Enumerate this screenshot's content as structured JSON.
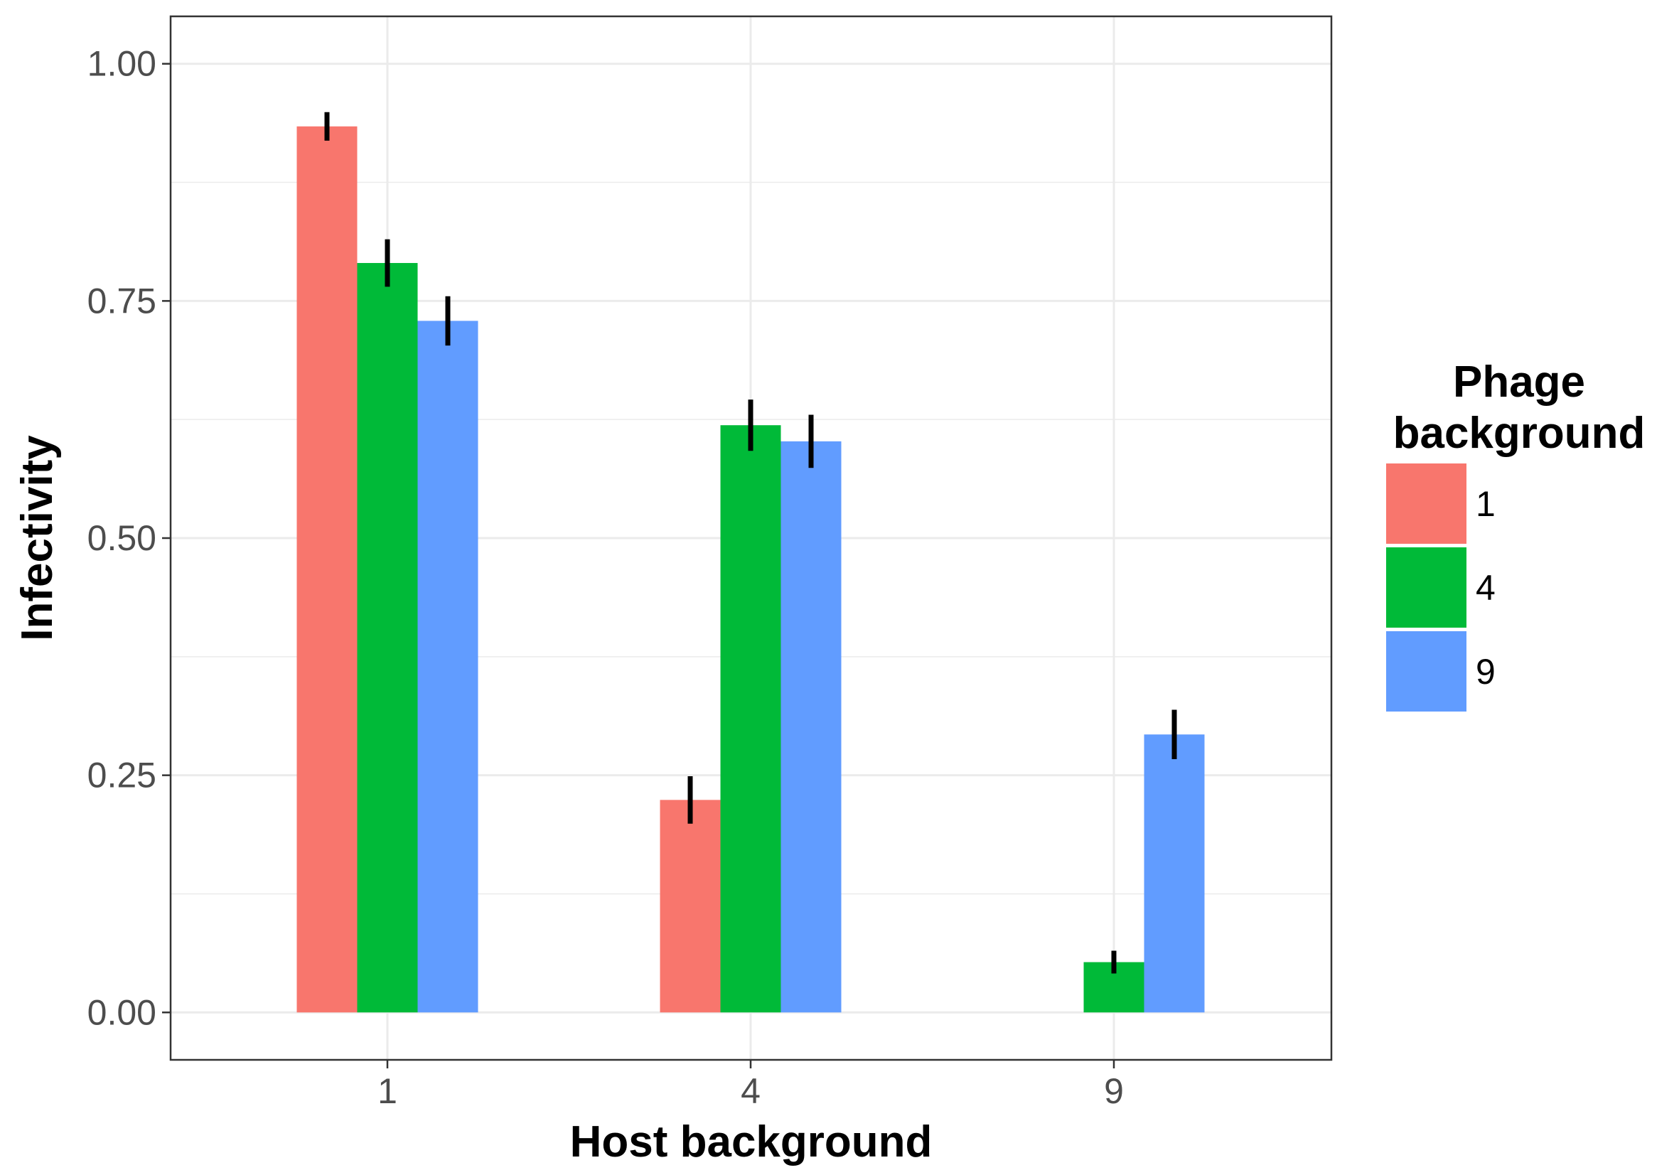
{
  "chart_data": {
    "type": "bar",
    "xlabel": "Host background",
    "ylabel": "Infectivity",
    "categories": [
      "1",
      "4",
      "9"
    ],
    "ylim": [
      -0.05,
      1.05
    ],
    "yticks": [
      "0.00",
      "0.25",
      "0.50",
      "0.75",
      "1.00"
    ],
    "grid": true,
    "legend": {
      "title_lines": [
        "Phage",
        "background"
      ],
      "position": "right"
    },
    "series": [
      {
        "name": "1",
        "color": "#F8766D",
        "values": [
          0.934,
          0.224,
          0.0
        ],
        "errors": [
          0.015,
          0.025,
          0.0
        ]
      },
      {
        "name": "4",
        "color": "#00BA38",
        "values": [
          0.79,
          0.619,
          0.053
        ],
        "errors": [
          0.025,
          0.027,
          0.012
        ]
      },
      {
        "name": "9",
        "color": "#619CFF",
        "values": [
          0.729,
          0.602,
          0.293
        ],
        "errors": [
          0.026,
          0.028,
          0.026
        ]
      }
    ]
  }
}
